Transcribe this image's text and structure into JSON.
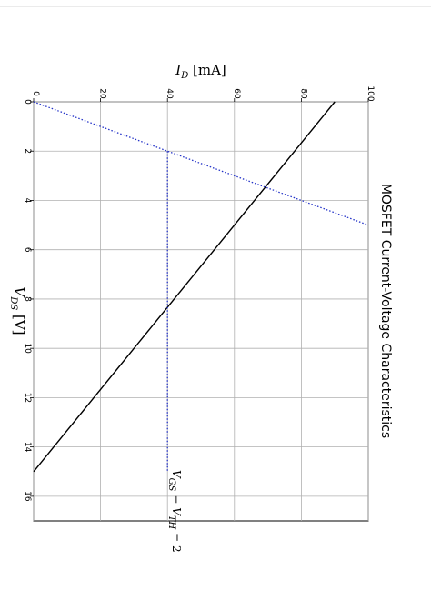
{
  "chart_data": {
    "type": "line",
    "title": "MOSFET Current-Voltage Characteristics",
    "xlabel": "V_DS [V]",
    "ylabel": "I_D [mA]",
    "xlim": [
      0,
      17
    ],
    "ylim": [
      0,
      100
    ],
    "x_ticks": [
      "0",
      "2",
      "4",
      "6",
      "8",
      "10",
      "12",
      "14",
      "16"
    ],
    "y_ticks": [
      "0",
      "20",
      "40",
      "60",
      "80",
      "100"
    ],
    "grid": true,
    "orientation": "rotated 90 degrees clockwise",
    "series": [
      {
        "style": "solid",
        "color": "#000000",
        "x": [
          0,
          15
        ],
        "y": [
          90,
          0
        ]
      },
      {
        "style": "dotted",
        "color": "#2433c8",
        "x": [
          0,
          5
        ],
        "y": [
          0,
          100
        ]
      },
      {
        "style": "dotted",
        "color": "#2433c8",
        "x": [
          2,
          15
        ],
        "y": [
          40,
          40
        ]
      }
    ],
    "annotations": [
      {
        "text": "V_GS − V_TH = 2",
        "x": 15.2,
        "y": 40
      }
    ]
  }
}
